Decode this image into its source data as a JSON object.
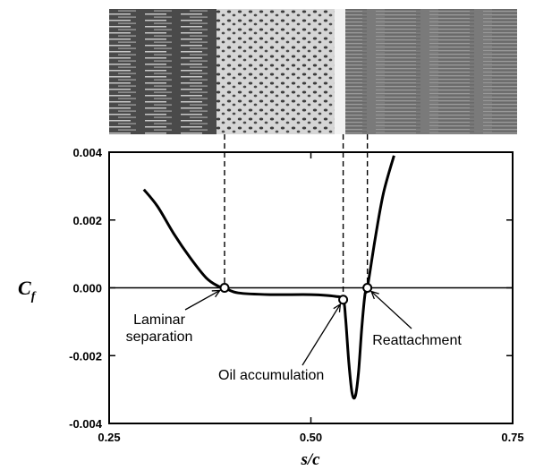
{
  "chart_data": {
    "type": "line",
    "xlabel": "s/c",
    "ylabel": "C",
    "ylabel_subscript": "f",
    "xlim": [
      0.25,
      0.75
    ],
    "ylim": [
      -0.004,
      0.004
    ],
    "x_ticks": [
      0.25,
      0.5,
      0.75
    ],
    "x_tick_labels": [
      "0.25",
      "0.50",
      "0.75"
    ],
    "y_ticks": [
      -0.004,
      -0.002,
      0.0,
      0.002,
      0.004
    ],
    "y_tick_labels": [
      "-0.004",
      "-0.002",
      "0.000",
      "0.002",
      "0.004"
    ],
    "grid": false,
    "legend": "none",
    "series": [
      {
        "x": [
          0.293,
          0.31,
          0.33,
          0.35,
          0.37,
          0.385,
          0.393,
          0.41,
          0.45,
          0.5,
          0.53,
          0.54,
          0.543,
          0.547,
          0.551,
          0.555,
          0.559,
          0.563,
          0.567,
          0.57,
          0.58,
          0.59,
          0.603
        ],
        "y": [
          0.0029,
          0.0024,
          0.0016,
          0.0009,
          0.0003,
          5e-05,
          0.0,
          -0.00015,
          -0.0002,
          -0.0002,
          -0.00025,
          -0.00035,
          -0.0009,
          -0.0022,
          -0.0031,
          -0.0032,
          -0.0025,
          -0.0012,
          -0.0002,
          0.0,
          0.0015,
          0.0028,
          0.0039
        ]
      }
    ],
    "markers": [
      {
        "x": 0.393,
        "y": 0.0
      },
      {
        "x": 0.54,
        "y": -0.00035
      },
      {
        "x": 0.57,
        "y": 0.0
      }
    ],
    "reference_lines_x": [
      0.393,
      0.54,
      0.57
    ],
    "annotations": [
      {
        "lines": [
          "Laminar",
          "separation"
        ],
        "target_x": 0.393,
        "target_y": 0.0
      },
      {
        "lines": [
          "Oil accumulation"
        ],
        "target_x": 0.54,
        "target_y": -0.00035
      },
      {
        "lines": [
          "Reattachment"
        ],
        "target_x": 0.57,
        "target_y": 0.0
      }
    ],
    "image_strip": {
      "description_colors": [
        "#3c3c3c",
        "#dcdcdc",
        "#7a7a7a"
      ]
    }
  }
}
